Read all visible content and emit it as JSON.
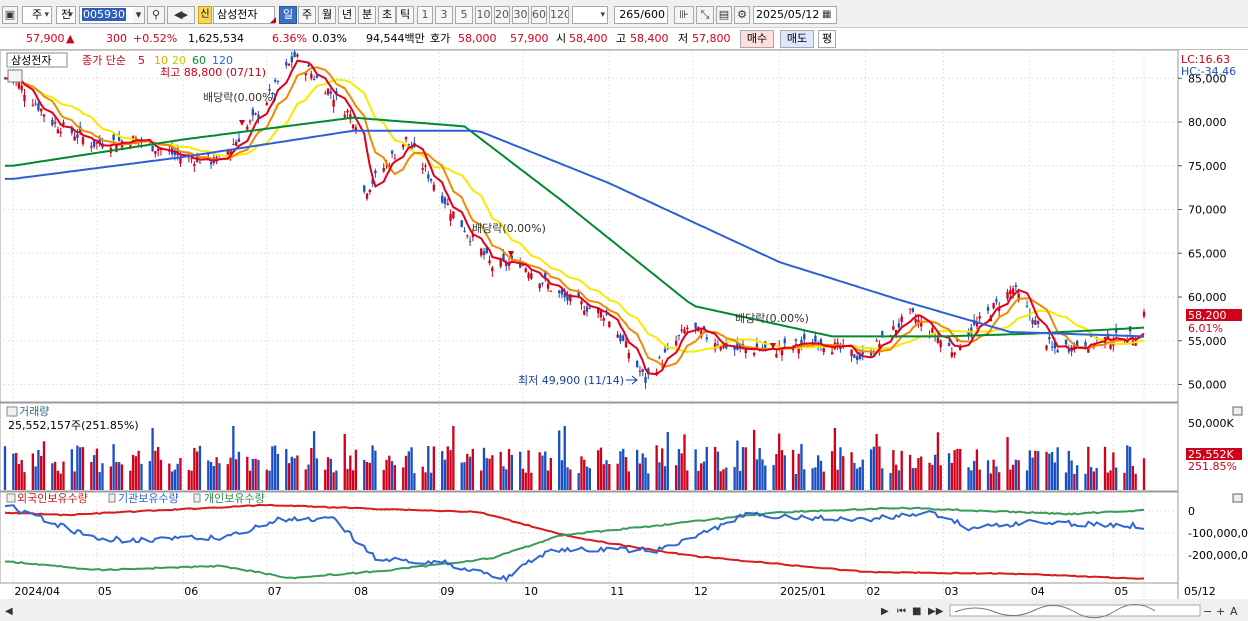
{
  "toolbar": {
    "period_short": "주",
    "prev_label": "전",
    "stock_code": "005930",
    "credit_badge": "신",
    "stock_name": "삼성전자",
    "periods": [
      "일",
      "주",
      "월",
      "년",
      "분",
      "초",
      "틱"
    ],
    "active_period": "일",
    "intervals": [
      "1",
      "3",
      "5",
      "10",
      "20",
      "30",
      "60",
      "120"
    ],
    "bar_count": "265",
    "bar_total": "/600",
    "date": "2025/05/12"
  },
  "quote": {
    "price": "57,900",
    "change_arrow": "▲",
    "change": "300",
    "change_pct": "+0.52%",
    "volume": "1,625,534",
    "turnover_pct": "6.36%",
    "pct2": "0.03%",
    "amount": "94,544백만",
    "ask_label": "호가",
    "ask": "58,000",
    "bid": "57,900",
    "open_label": "시",
    "open": "58,400",
    "high_label": "고",
    "high": "58,400",
    "low_label": "저",
    "low": "57,800",
    "buy_button": "매수",
    "sell_button": "매도",
    "avg_button": "평"
  },
  "price_panel": {
    "legend_name": "삼성전자",
    "legend_series": "종가 단순",
    "ma_periods": [
      "5",
      "10",
      "20",
      "60",
      "120"
    ],
    "high_label": "최고 88,800 (07/11)",
    "low_label": "최저 49,900 (11/14)",
    "dividend_label": "배당락(0.00%)",
    "lc": "LC:16.63",
    "hc": "HC:-34.46",
    "last_price_label": "58,200",
    "last_pct_label": "6.01%"
  },
  "volume_panel": {
    "title": "거래량",
    "value": "25,552,157주(251.85%)",
    "last_label": "25,552K",
    "last_pct": "251.85%"
  },
  "holding_panel": {
    "series": [
      "외국인보유수량",
      "기관보유수량",
      "개인보유수량"
    ]
  },
  "colors": {
    "up": "#d0021b",
    "down": "#1a4fc4",
    "ma5": "#e0001c",
    "ma10": "#f08a00",
    "ma20": "#f5ea00",
    "ma60": "#008a2e",
    "ma120": "#2f5fd6",
    "foreign": "#2f66d4",
    "institution": "#d81b1b",
    "individual": "#3a9a5a"
  },
  "chart_data": [
    {
      "type": "candlestick",
      "title": "삼성전자",
      "x_ticks": [
        "2024/04",
        "05",
        "06",
        "07",
        "08",
        "09",
        "10",
        "11",
        "12",
        "2025/01",
        "02",
        "03",
        "04",
        "05",
        "05/12"
      ],
      "y_ticks": [
        "85,000",
        "80,000",
        "75,000",
        "70,000",
        "65,000",
        "60,000",
        "55,000",
        "50,000"
      ],
      "ylim": [
        48000,
        88000
      ],
      "close_anchors": [
        {
          "x": "2024-04-01",
          "y": 85000
        },
        {
          "x": "2024-04-15",
          "y": 80000
        },
        {
          "x": "2024-04-30",
          "y": 77500
        },
        {
          "x": "2024-05-15",
          "y": 78000
        },
        {
          "x": "2024-05-31",
          "y": 76000
        },
        {
          "x": "2024-06-14",
          "y": 75500
        },
        {
          "x": "2024-06-28",
          "y": 81000
        },
        {
          "x": "2024-07-11",
          "y": 87500
        },
        {
          "x": "2024-07-25",
          "y": 83000
        },
        {
          "x": "2024-08-02",
          "y": 80000
        },
        {
          "x": "2024-08-05",
          "y": 72000
        },
        {
          "x": "2024-08-20",
          "y": 78000
        },
        {
          "x": "2024-09-05",
          "y": 70000
        },
        {
          "x": "2024-09-20",
          "y": 63500
        },
        {
          "x": "2024-09-30",
          "y": 64000
        },
        {
          "x": "2024-10-15",
          "y": 60000
        },
        {
          "x": "2024-10-31",
          "y": 58000
        },
        {
          "x": "2024-11-14",
          "y": 50500
        },
        {
          "x": "2024-11-29",
          "y": 56500
        },
        {
          "x": "2024-12-16",
          "y": 54000
        },
        {
          "x": "2024-12-31",
          "y": 54000
        },
        {
          "x": "2025-01-15",
          "y": 55000
        },
        {
          "x": "2025-01-31",
          "y": 53000
        },
        {
          "x": "2025-02-17",
          "y": 58000
        },
        {
          "x": "2025-03-04",
          "y": 54000
        },
        {
          "x": "2025-03-26",
          "y": 61000
        },
        {
          "x": "2025-04-09",
          "y": 54000
        },
        {
          "x": "2025-04-25",
          "y": 55000
        },
        {
          "x": "2025-05-09",
          "y": 55500
        },
        {
          "x": "2025-05-12",
          "y": 58200
        }
      ],
      "ma_anchors": {
        "ma60": [
          {
            "x": "2024-04-01",
            "y": 75000
          },
          {
            "x": "2024-06-01",
            "y": 78000
          },
          {
            "x": "2024-08-01",
            "y": 80500
          },
          {
            "x": "2024-09-10",
            "y": 79500
          },
          {
            "x": "2024-10-15",
            "y": 71000
          },
          {
            "x": "2024-12-01",
            "y": 59000
          },
          {
            "x": "2025-01-20",
            "y": 55500
          },
          {
            "x": "2025-03-01",
            "y": 55500
          },
          {
            "x": "2025-04-01",
            "y": 55800
          },
          {
            "x": "2025-05-12",
            "y": 56500
          }
        ],
        "ma120": [
          {
            "x": "2024-04-01",
            "y": 73500
          },
          {
            "x": "2024-06-01",
            "y": 76000
          },
          {
            "x": "2024-08-01",
            "y": 79000
          },
          {
            "x": "2024-09-15",
            "y": 79000
          },
          {
            "x": "2024-11-01",
            "y": 73000
          },
          {
            "x": "2025-01-01",
            "y": 64000
          },
          {
            "x": "2025-02-15",
            "y": 59500
          },
          {
            "x": "2025-03-25",
            "y": 56000
          },
          {
            "x": "2025-05-12",
            "y": 55500
          }
        ]
      }
    },
    {
      "type": "bar",
      "title": "거래량",
      "y_ticks": [
        "50,000K"
      ],
      "last_value_k": 25552
    },
    {
      "type": "line",
      "series_names": [
        "외국인보유수량",
        "기관보유수량",
        "개인보유수량"
      ],
      "y_ticks": [
        "0",
        "-100,000,0",
        "-200,000,0"
      ]
    }
  ]
}
